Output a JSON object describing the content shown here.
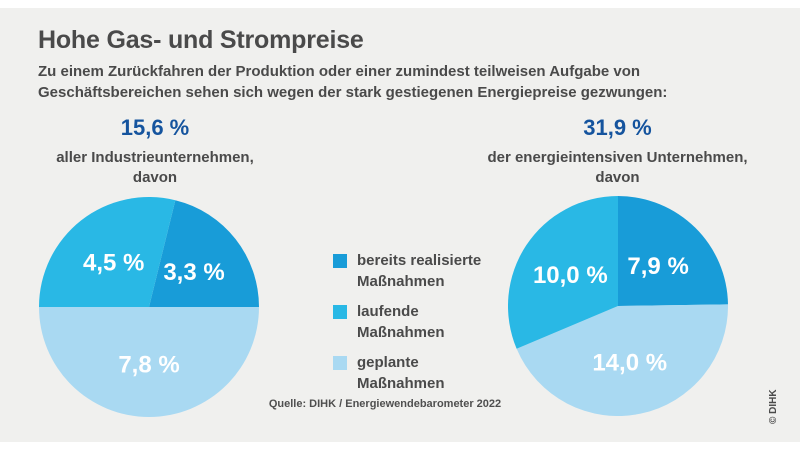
{
  "header": {
    "title": "Hohe Gas- und Strompreise",
    "subtitle": "Zu einem Zurückfahren der Produktion oder einer zumindest teilweisen Aufgabe von Geschäftsbereichen sehen sich wegen der stark gestiegenen Energiepreise gezwungen:"
  },
  "colors": {
    "background": "#f0f0ee",
    "accent_navy": "#15549e",
    "text_gray": "#4a4a4a",
    "realized_blue": "#189cd8",
    "running_cyan": "#29b8e5",
    "planned_lightblue": "#a9d9f2"
  },
  "chart_data": [
    {
      "type": "pie",
      "header": {
        "value": "15,6 %",
        "caption_line1": "aller Industrieunternehmen,",
        "caption_line2": "davon"
      },
      "total": 15.6,
      "start_angle_deg": 13.85,
      "slices": [
        {
          "label": "bereits realisierte Maßnahmen",
          "value": 3.3,
          "display": "3,3 %",
          "color": "#189cd8"
        },
        {
          "label": "geplante Maßnahmen",
          "value": 7.8,
          "display": "7,8 %",
          "color": "#a9d9f2"
        },
        {
          "label": "laufende Maßnahmen",
          "value": 4.5,
          "display": "4,5 %",
          "color": "#29b8e5"
        }
      ]
    },
    {
      "type": "pie",
      "header": {
        "value": "31,9 %",
        "caption_line1": "der energieintensiven Unternehmen,",
        "caption_line2": "davon"
      },
      "total": 31.9,
      "start_angle_deg": 0,
      "slices": [
        {
          "label": "bereits realisierte Maßnahmen",
          "value": 7.9,
          "display": "7,9 %",
          "color": "#189cd8"
        },
        {
          "label": "geplante Maßnahmen",
          "value": 14.0,
          "display": "14,0 %",
          "color": "#a9d9f2"
        },
        {
          "label": "laufende Maßnahmen",
          "value": 10.0,
          "display": "10,0 %",
          "color": "#29b8e5"
        }
      ]
    }
  ],
  "legend": {
    "items": [
      {
        "line1": "bereits realisierte",
        "line2": "Maßnahmen",
        "color": "#189cd8"
      },
      {
        "line1": "laufende",
        "line2": "Maßnahmen",
        "color": "#29b8e5"
      },
      {
        "line1": "geplante",
        "line2": "Maßnahmen",
        "color": "#a9d9f2"
      }
    ]
  },
  "source": "Quelle: DIHK / Energiewendebarometer 2022",
  "copyright": "© DIHK"
}
